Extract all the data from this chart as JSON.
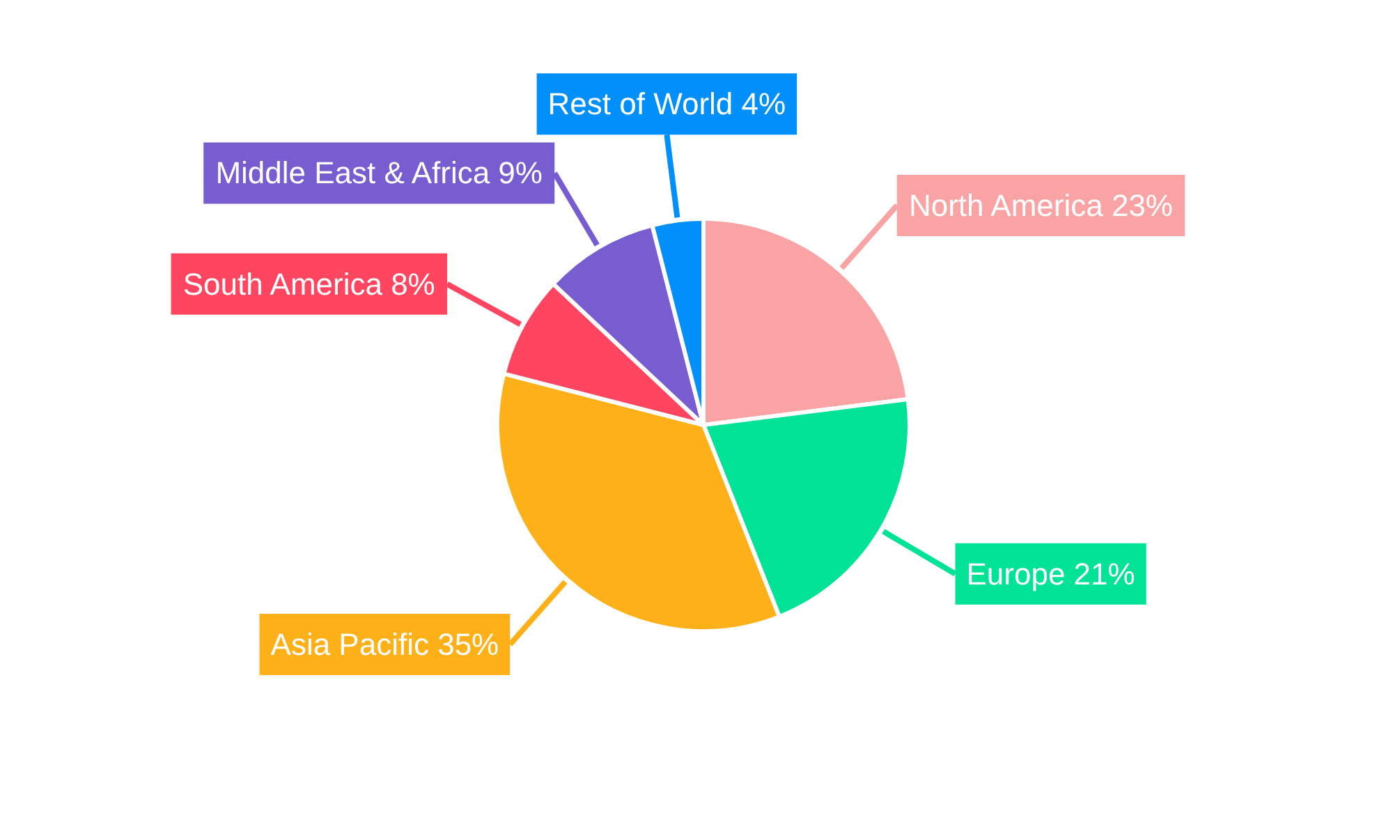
{
  "chart_data": {
    "type": "pie",
    "categories": [
      "North America",
      "Europe",
      "Asia Pacific",
      "South America",
      "Middle East & Africa",
      "Rest of World"
    ],
    "values": [
      23,
      21,
      35,
      8,
      9,
      4
    ],
    "value_labels": [
      "23%",
      "21%",
      "35%",
      "8%",
      "9%",
      "4%"
    ],
    "colors": [
      "#f9a3a4",
      "#00e396",
      "#feb019",
      "#ff4560",
      "#775dd0",
      "#008ffb"
    ],
    "legend": false
  }
}
